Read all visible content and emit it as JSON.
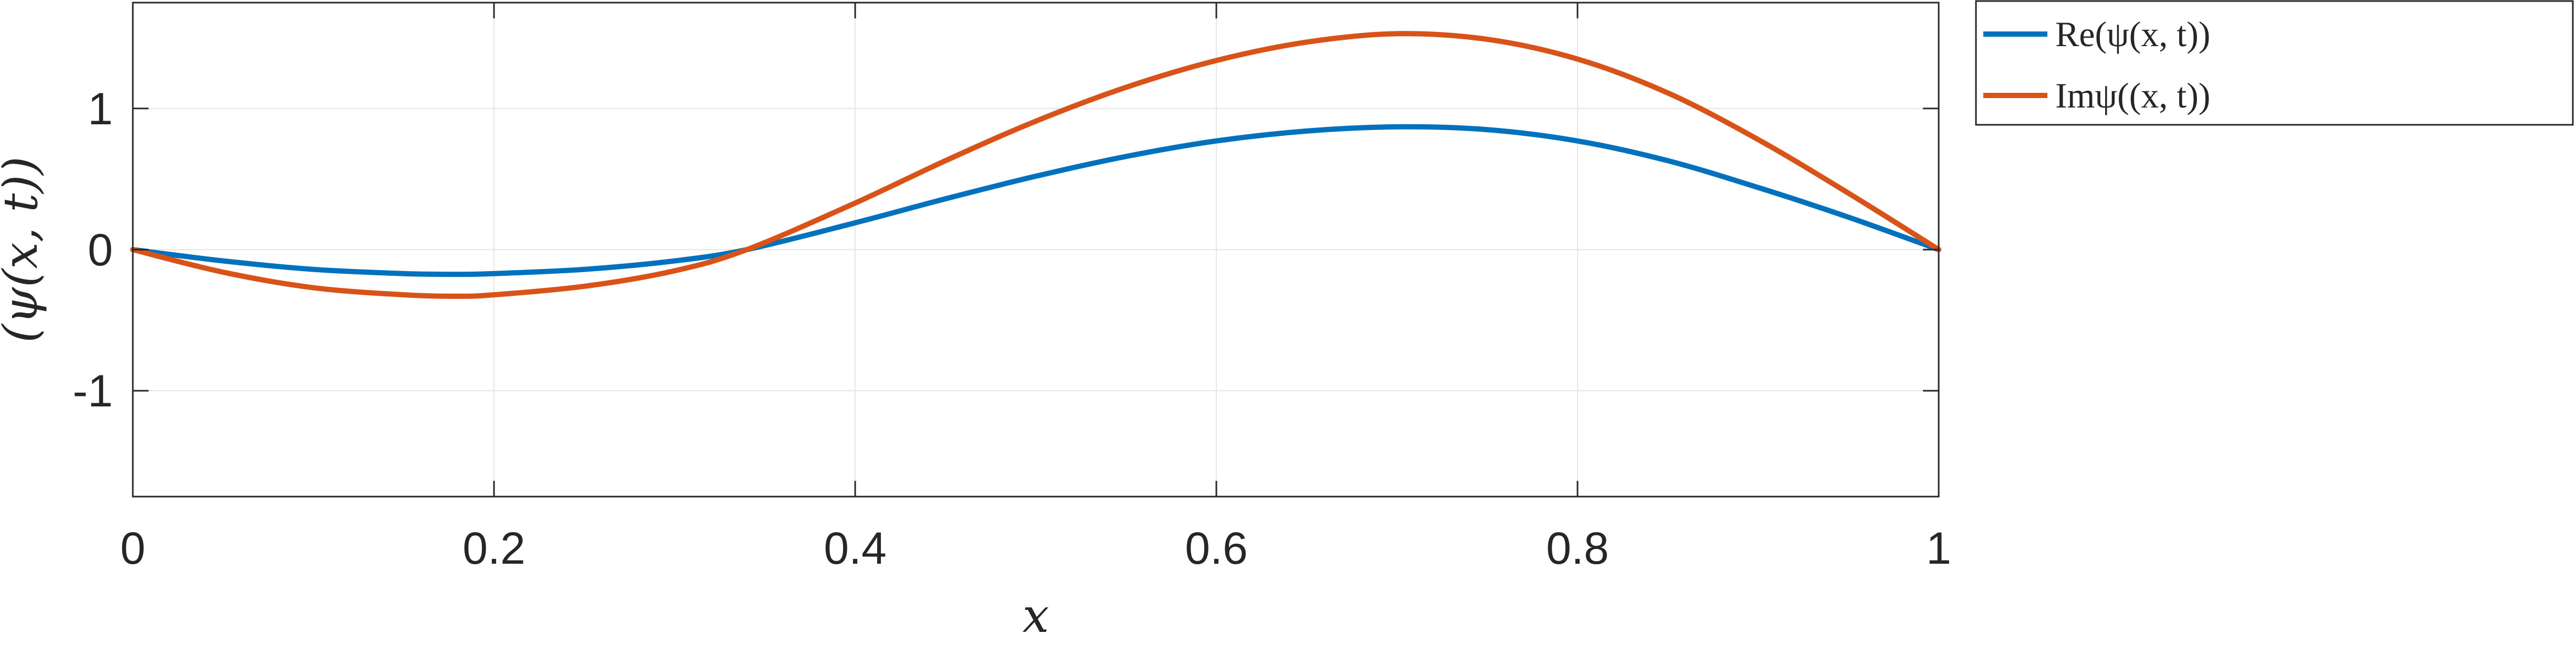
{
  "chart_data": {
    "type": "line",
    "title": "",
    "xlabel": "x",
    "ylabel": "(ψ(x, t))",
    "xlim": [
      0,
      1
    ],
    "ylim": [
      -1.75,
      1.75
    ],
    "grid": true,
    "box": true,
    "legend_position": "outside top-right",
    "x_ticks": [
      0,
      0.2,
      0.4,
      0.6,
      0.8,
      1
    ],
    "x_tick_labels": [
      "0",
      "0.2",
      "0.4",
      "0.6",
      "0.8",
      "1"
    ],
    "y_ticks": [
      -1,
      0,
      1
    ],
    "y_tick_labels": [
      "-1",
      "0",
      "1"
    ],
    "x": [
      0,
      0.05,
      0.1,
      0.15,
      0.18,
      0.2,
      0.25,
      0.3,
      0.34,
      0.4,
      0.45,
      0.5,
      0.55,
      0.6,
      0.65,
      0.7,
      0.75,
      0.8,
      0.85,
      0.9,
      0.95,
      1
    ],
    "series": [
      {
        "name": "Re(ψ(x, t))",
        "color": "#0072BD",
        "values": [
          0,
          -0.08,
          -0.14,
          -0.17,
          -0.175,
          -0.17,
          -0.14,
          -0.08,
          0,
          0.19,
          0.36,
          0.52,
          0.66,
          0.77,
          0.84,
          0.87,
          0.85,
          0.77,
          0.63,
          0.44,
          0.23,
          0
        ]
      },
      {
        "name": "Imψ((x, t))",
        "color": "#D95319",
        "values": [
          0,
          -0.16,
          -0.27,
          -0.32,
          -0.33,
          -0.32,
          -0.26,
          -0.15,
          0,
          0.33,
          0.63,
          0.91,
          1.15,
          1.34,
          1.47,
          1.53,
          1.49,
          1.35,
          1.11,
          0.78,
          0.4,
          0
        ]
      }
    ]
  }
}
